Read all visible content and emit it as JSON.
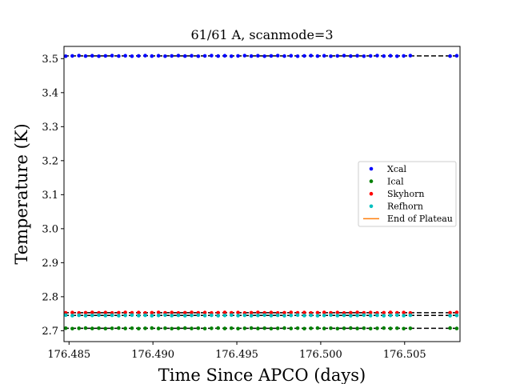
{
  "chart_data": {
    "type": "scatter",
    "title": "61/61 A, scanmode=3",
    "xlabel": "Time Since APCO (days)",
    "ylabel": "Temperature (K)",
    "xlim": [
      176.4847,
      176.5083
    ],
    "ylim": [
      2.668,
      3.536
    ],
    "xticks": [
      176.485,
      176.49,
      176.495,
      176.5,
      176.505
    ],
    "xtick_labels": [
      "176.485",
      "176.490",
      "176.495",
      "176.500",
      "176.505"
    ],
    "yticks": [
      2.7,
      2.8,
      2.9,
      3.0,
      3.1,
      3.2,
      3.3,
      3.4,
      3.5
    ],
    "ytick_labels": [
      "2.7",
      "2.8",
      "2.9",
      "3.0",
      "3.1",
      "3.2",
      "3.3",
      "3.4",
      "3.5"
    ],
    "grid": false,
    "legend_position": "center-right",
    "x_start": 176.4848,
    "x_step": 0.000395,
    "x_gap": [
      176.5055,
      176.5075
    ],
    "series": [
      {
        "name": "Xcal",
        "color": "#0000ff",
        "value": 3.508
      },
      {
        "name": "Ical",
        "color": "#008000",
        "value": 2.707
      },
      {
        "name": "Skyhorn",
        "color": "#ff0000",
        "value": 2.753
      },
      {
        "name": "Refhorn",
        "color": "#00bfbf",
        "value": 2.745
      }
    ],
    "plateau_fits": [
      {
        "value": 3.508,
        "color": "#000000",
        "style": "dashed"
      },
      {
        "value": 2.753,
        "color": "#000000",
        "style": "dashed"
      },
      {
        "value": 2.745,
        "color": "#000000",
        "style": "dashed"
      },
      {
        "value": 2.707,
        "color": "#000000",
        "style": "dashed"
      }
    ],
    "end_of_plateau": {
      "name": "End of Plateau",
      "color": "#ff7f0e"
    }
  }
}
